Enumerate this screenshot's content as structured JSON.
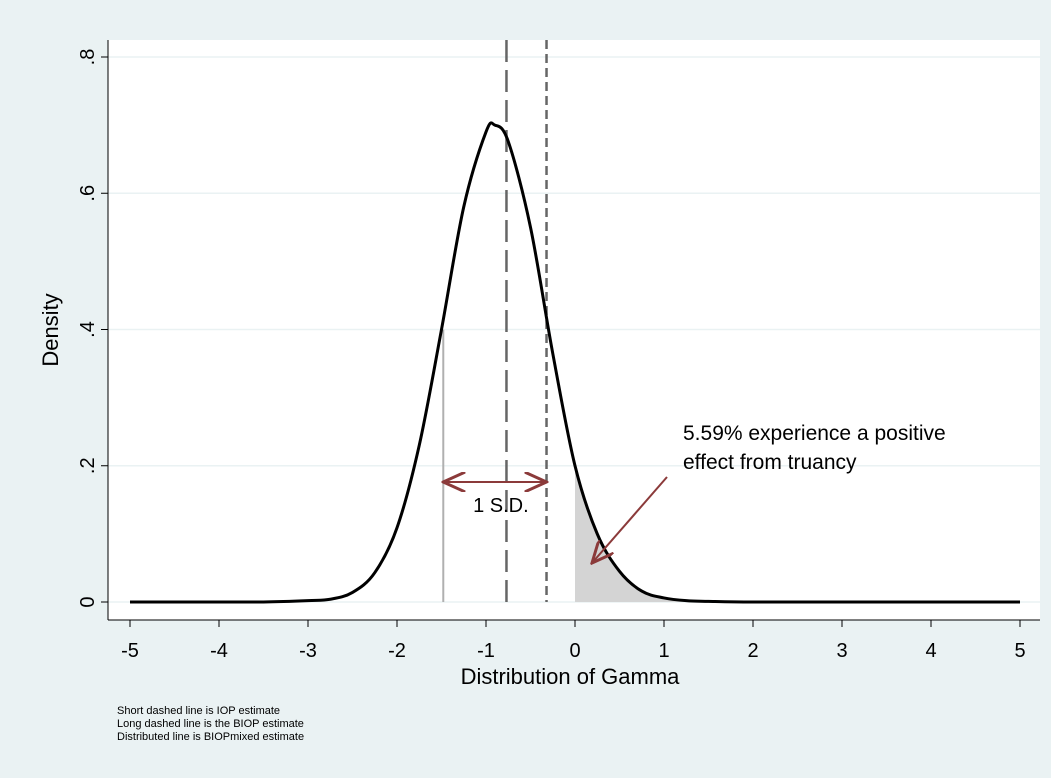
{
  "chart_data": {
    "type": "line",
    "x_label": "Distribution of Gamma",
    "y_label": "Density",
    "x": [
      -5,
      -4,
      -3.5,
      -3,
      -2.75,
      -2.5,
      -2.25,
      -2,
      -1.75,
      -1.5,
      -1.25,
      -1,
      -0.9,
      -0.75,
      -0.5,
      -0.25,
      0,
      0.25,
      0.5,
      0.75,
      1,
      1.25,
      1.5,
      2,
      3,
      4,
      5
    ],
    "series": [
      {
        "color": "#000000",
        "values": [
          0,
          0,
          0,
          0.002,
          0.004,
          0.014,
          0.043,
          0.109,
          0.23,
          0.4,
          0.58,
          0.69,
          0.7,
          0.676,
          0.55,
          0.365,
          0.2,
          0.1,
          0.045,
          0.016,
          0.006,
          0.002,
          0.001,
          0,
          0,
          0,
          0
        ]
      }
    ],
    "xlim": [
      -5,
      5
    ],
    "xticks": [
      -5,
      -4,
      -3,
      -2,
      -1,
      0,
      1,
      2,
      3,
      4,
      5
    ],
    "ylim": [
      0,
      0.8
    ],
    "yticks": [
      0,
      {
        "value": 0.2,
        "label": ".2"
      },
      {
        "value": 0.4,
        "label": ".4"
      },
      {
        "value": 0.6,
        "label": ".6"
      },
      {
        "value": 0.8,
        "label": ".8"
      }
    ],
    "grid": true,
    "shade_from": 0,
    "shade_color": "#d4d4d4",
    "vlines": [
      {
        "x": -1.48,
        "style": "solid",
        "color": "#b0b0b0"
      },
      {
        "x": -0.77,
        "style": "long-dash",
        "color": "#666666"
      },
      {
        "x": -0.32,
        "style": "short-dash",
        "color": "#666666"
      }
    ],
    "sd_label": "1 S.D.",
    "annotation": [
      "5.59% experience a positive",
      "effect from truancy"
    ],
    "arrow_color": "#8b3a3a",
    "notes": [
      "Short dashed line is IOP estimate",
      "Long dashed line is the BIOP estimate",
      "Distributed line is BIOPmixed estimate"
    ]
  }
}
